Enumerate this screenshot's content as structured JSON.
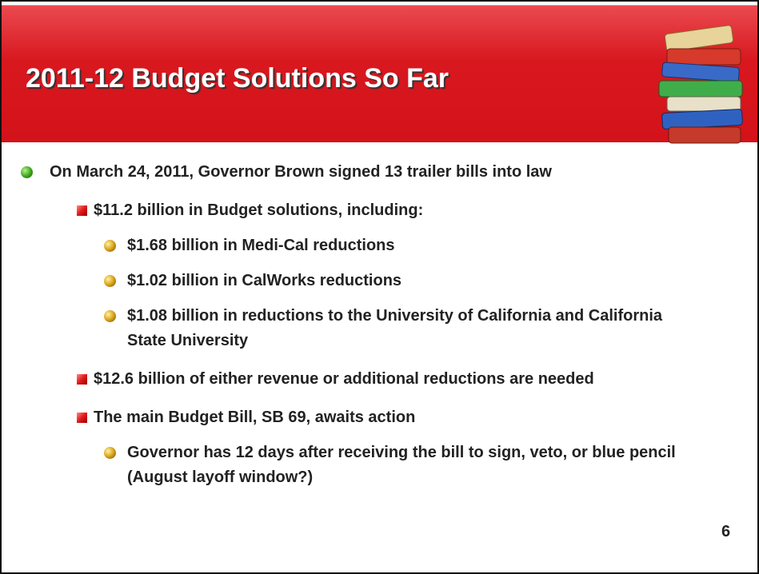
{
  "title": "2011-12 Budget Solutions So Far",
  "bullets": [
    {
      "text": "On March 24, 2011, Governor Brown signed 13 trailer bills into law",
      "children": [
        {
          "text": "$11.2 billion in Budget solutions, including:",
          "children": [
            {
              "text": "$1.68 billion in Medi-Cal reductions"
            },
            {
              "text": "$1.02 billion in CalWorks reductions"
            },
            {
              "text": "$1.08 billion in reductions to the University of California and California State University"
            }
          ]
        },
        {
          "text": "$12.6 billion of either revenue or additional reductions are needed"
        },
        {
          "text": "The main Budget Bill, SB 69, awaits action",
          "children": [
            {
              "text": "Governor has 12 days after receiving the bill to sign, veto, or blue pencil (August layoff window?)"
            }
          ]
        }
      ]
    }
  ],
  "page_number": "6"
}
